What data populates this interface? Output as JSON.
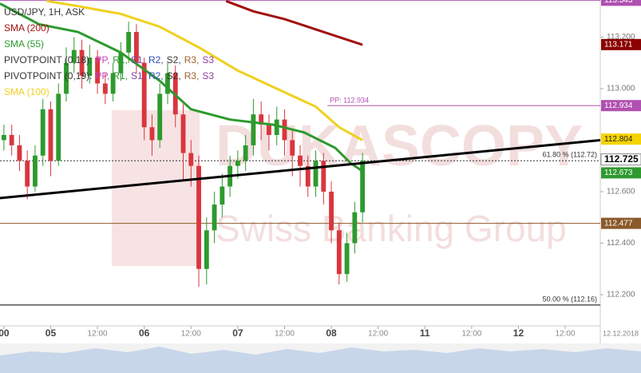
{
  "chart_data": {
    "type": "candlestick",
    "title": "USD/JPY, 1H, ASK",
    "x": [
      0,
      2,
      4,
      6,
      8,
      10,
      12,
      14,
      16,
      18,
      20,
      22,
      24,
      26,
      28,
      30,
      32,
      34,
      36,
      38,
      40,
      42,
      44,
      46,
      48,
      50,
      52,
      54,
      56,
      58,
      60,
      62,
      64,
      66,
      68,
      70,
      72,
      74,
      76,
      78,
      80,
      82,
      84,
      86,
      88,
      90,
      92
    ],
    "open": [
      112.8,
      112.82,
      112.78,
      112.72,
      112.62,
      112.74,
      112.92,
      112.72,
      112.98,
      113.1,
      113.15,
      113.05,
      113.12,
      113.02,
      112.98,
      113.06,
      113.14,
      113.22,
      113.1,
      112.85,
      112.8,
      112.98,
      113.06,
      112.9,
      112.75,
      112.7,
      112.3,
      112.45,
      112.55,
      112.62,
      112.7,
      112.72,
      112.78,
      112.9,
      112.86,
      112.82,
      112.88,
      112.8,
      112.74,
      112.7,
      112.62,
      112.72,
      112.6,
      112.45,
      112.28,
      112.4,
      112.52
    ],
    "high": [
      112.86,
      112.86,
      112.82,
      112.76,
      112.78,
      112.96,
      112.95,
      113.02,
      113.16,
      113.2,
      113.19,
      113.17,
      113.15,
      113.06,
      113.1,
      113.18,
      113.26,
      113.25,
      113.12,
      112.9,
      113.02,
      113.1,
      113.09,
      112.94,
      112.8,
      112.74,
      112.5,
      112.6,
      112.67,
      112.74,
      112.76,
      112.82,
      112.96,
      112.95,
      112.9,
      112.93,
      112.92,
      112.84,
      112.78,
      112.74,
      112.76,
      112.75,
      112.64,
      112.48,
      112.44,
      112.56,
      112.75
    ],
    "low": [
      112.76,
      112.74,
      112.68,
      112.57,
      112.6,
      112.7,
      112.66,
      112.7,
      112.95,
      113.06,
      113.0,
      113.02,
      112.98,
      112.94,
      112.95,
      113.03,
      113.1,
      113.06,
      112.8,
      112.74,
      112.77,
      112.94,
      112.85,
      112.64,
      112.62,
      112.23,
      112.24,
      112.4,
      112.5,
      112.58,
      112.65,
      112.68,
      112.74,
      112.8,
      112.76,
      112.78,
      112.74,
      112.66,
      112.62,
      112.58,
      112.58,
      112.55,
      112.4,
      112.24,
      112.25,
      112.36,
      112.48
    ],
    "close": [
      112.82,
      112.78,
      112.72,
      112.62,
      112.74,
      112.92,
      112.72,
      112.98,
      113.1,
      113.15,
      113.05,
      113.12,
      113.02,
      112.98,
      113.06,
      113.14,
      113.22,
      113.1,
      112.85,
      112.8,
      112.98,
      113.06,
      112.9,
      112.75,
      112.7,
      112.3,
      112.45,
      112.55,
      112.62,
      112.7,
      112.72,
      112.78,
      112.9,
      112.86,
      112.82,
      112.88,
      112.8,
      112.74,
      112.7,
      112.62,
      112.72,
      112.6,
      112.45,
      112.28,
      112.4,
      112.52,
      112.72
    ],
    "up_color": "#2e9a2e",
    "down_color": "#d9363e",
    "xlim": [
      -1,
      153
    ],
    "ylim": [
      112.079,
      113.344
    ],
    "xticks": [
      {
        "value": 0,
        "label": "00"
      },
      {
        "value": 12,
        "label": "05"
      },
      {
        "value": 24,
        "label": "12:00"
      },
      {
        "value": 36,
        "label": "06"
      },
      {
        "value": 48,
        "label": "12:00"
      },
      {
        "value": 60,
        "label": "07"
      },
      {
        "value": 72,
        "label": "12:00"
      },
      {
        "value": 84,
        "label": "08"
      },
      {
        "value": 96,
        "label": "12:00"
      },
      {
        "value": 108,
        "label": "11"
      },
      {
        "value": 120,
        "label": "12:00"
      },
      {
        "value": 132,
        "label": "12"
      },
      {
        "value": 144,
        "label": "12:00"
      }
    ],
    "yticks": [
      {
        "value": 112.2,
        "label": "112.200"
      },
      {
        "value": 112.4,
        "label": "112.400"
      },
      {
        "value": 112.6,
        "label": "112.600"
      },
      {
        "value": 113.0,
        "label": "113.000"
      },
      {
        "value": 113.2,
        "label": "113.200"
      }
    ],
    "date_label": "12.12.2018",
    "series": [
      {
        "name": "SMA (200)",
        "color": "#a01010",
        "x": [
          57,
          64,
          72,
          80,
          86,
          92
        ],
        "values": [
          113.34,
          113.3,
          113.27,
          113.23,
          113.2,
          113.17
        ]
      },
      {
        "name": "SMA (55)",
        "color": "#2e9a2e",
        "x": [
          -1,
          9,
          19,
          30,
          40,
          48,
          58,
          69,
          77,
          85,
          89,
          92
        ],
        "values": [
          113.33,
          113.25,
          113.22,
          113.14,
          113.03,
          112.92,
          112.88,
          112.86,
          112.83,
          112.77,
          112.71,
          112.68
        ]
      },
      {
        "name": "SMA (100)",
        "color": "#f0d020",
        "x": [
          11,
          19,
          30,
          40,
          50,
          60,
          70,
          80,
          86,
          92
        ],
        "values": [
          113.34,
          113.32,
          113.29,
          113.24,
          113.16,
          113.07,
          113.0,
          112.93,
          112.85,
          112.8
        ]
      }
    ],
    "pivot_legends": [
      {
        "name": "PIVOTPOINT (0,18):",
        "parts": [
          {
            "text": "PP,",
            "color": "#c040c0"
          },
          {
            "text": "R1,",
            "color": "#2e9a2e"
          },
          {
            "text": "S1,",
            "color": "#8040a0"
          },
          {
            "text": "R2,",
            "color": "#3050b0"
          },
          {
            "text": "S2,",
            "color": "#333333"
          },
          {
            "text": "R3,",
            "color": "#a0602d"
          },
          {
            "text": "S3",
            "color": "#9040a0"
          }
        ]
      },
      {
        "name": "PIVOTPOINT (0,19):",
        "parts": [
          {
            "text": "PP,",
            "color": "#c040c0"
          },
          {
            "text": "R1,",
            "color": "#2e9a2e"
          },
          {
            "text": "S1,",
            "color": "#8040a0"
          },
          {
            "text": "R2,",
            "color": "#3050b0"
          },
          {
            "text": "S2,",
            "color": "#333333"
          },
          {
            "text": "R3,",
            "color": "#a0602d"
          },
          {
            "text": "S3",
            "color": "#9040a0"
          }
        ]
      }
    ],
    "trendline": {
      "color": "#000000",
      "x": [
        -1,
        153
      ],
      "values": [
        112.575,
        112.8
      ]
    },
    "levels": [
      {
        "label": "61.80 % (112.72)",
        "value": 112.72,
        "color": "#333333"
      },
      {
        "label": "50.00 % (112.16)",
        "value": 112.16,
        "color": "#000000"
      }
    ],
    "pivot_line": {
      "label": "PP: 112.934",
      "value": 112.934,
      "color": "#b050b0",
      "from": 83
    },
    "h_lines": [
      {
        "value": 113.343,
        "color": "#b050b0"
      },
      {
        "value": 112.477,
        "color": "#8b5a2b"
      }
    ],
    "price_labels": [
      {
        "value": 113.343,
        "color": "#b050b0",
        "text_color": "#ffffff"
      },
      {
        "value": 113.171,
        "color": "#8b0000",
        "text_color": "#ffffff"
      },
      {
        "value": 112.934,
        "color": "#b050b0",
        "text_color": "#ffffff"
      },
      {
        "value": 112.804,
        "color": "#f5d300",
        "text_color": "#222222"
      },
      {
        "value": 112.725,
        "color": "#ffffff",
        "text_color": "#000000"
      },
      {
        "value": 112.673,
        "color": "#2e9a2e",
        "text_color": "#ffffff"
      },
      {
        "value": 112.477,
        "color": "#8b5a2b",
        "text_color": "#ffffff"
      }
    ],
    "watermark": [
      "DUKASCOPY",
      "Swiss Banking Group"
    ]
  }
}
